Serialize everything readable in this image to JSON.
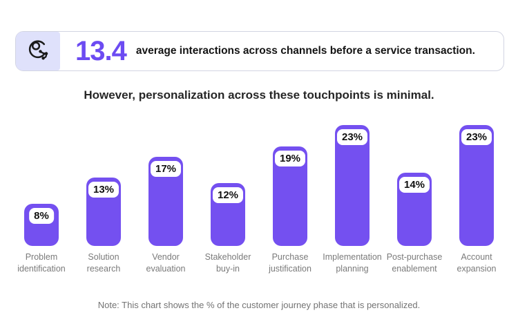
{
  "header": {
    "icon": "person-network-icon",
    "stat_value": "13.4",
    "stat_description": "average interactions across channels before a service transaction."
  },
  "subtitle": "However, personalization across these touchpoints is minimal.",
  "chart_data": {
    "type": "bar",
    "title": "However, personalization across these touchpoints is minimal.",
    "categories": [
      "Problem identification",
      "Solution research",
      "Vendor evaluation",
      "Stakeholder buy-in",
      "Purchase justification",
      "Implementation planning",
      "Post-purchase enablement",
      "Account expansion"
    ],
    "values": [
      8,
      13,
      17,
      12,
      19,
      23,
      14,
      23
    ],
    "value_labels": [
      "8%",
      "13%",
      "17%",
      "12%",
      "19%",
      "23%",
      "14%",
      "23%"
    ],
    "unit": "%",
    "ylim": [
      0,
      25
    ],
    "grid": false,
    "axis_lines": false,
    "legend": "none",
    "bar_color": "#7450f0",
    "value_label_style": "white rounded pill inside bar top"
  },
  "note": "Note: This chart shows the % of the customer journey phase that is personalized.",
  "colors": {
    "bar": "#7450f0",
    "stat_number": "#6c4bf2",
    "icon_tile_bg": "#dfe1fb",
    "card_border": "#d2d4e2",
    "heading_text": "#262626",
    "category_text": "#7a7a7a",
    "note_text": "#737373"
  }
}
